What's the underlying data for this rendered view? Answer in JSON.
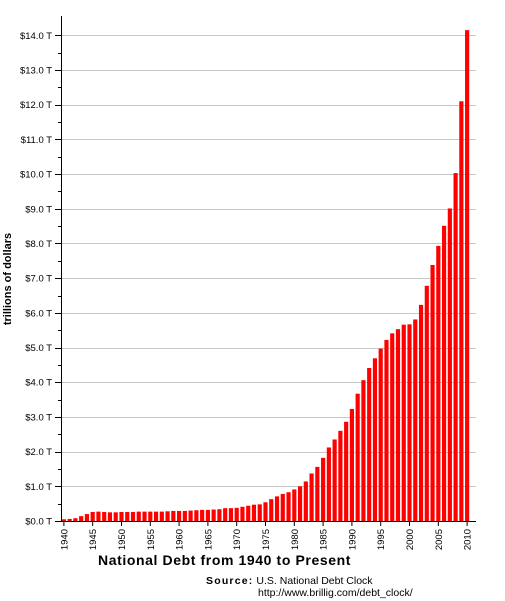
{
  "chart_data": {
    "type": "bar",
    "title": "National Debt from 1940 to Present",
    "ylabel": "trillions of dollars",
    "xlabel": "",
    "ylim": [
      0,
      14.5
    ],
    "grid": true,
    "bar_color": "#ff0000",
    "yticks": [
      0,
      1,
      2,
      3,
      4,
      5,
      6,
      7,
      8,
      9,
      10,
      11,
      12,
      13,
      14
    ],
    "ytick_labels": [
      "$0.0 T",
      "$1.0 T",
      "$2.0 T",
      "$3.0 T",
      "$4.0 T",
      "$5.0 T",
      "$6.0 T",
      "$7.0 T",
      "$8.0 T",
      "$9.0 T",
      "$10.0 T",
      "$11.0 T",
      "$12.0 T",
      "$13.0 T",
      "$14.0 T"
    ],
    "xtick_labels": [
      "1940",
      "1945",
      "1950",
      "1955",
      "1960",
      "1965",
      "1970",
      "1975",
      "1980",
      "1985",
      "1990",
      "1995",
      "2000",
      "2005",
      "2010"
    ],
    "categories": [
      "1940",
      "1941",
      "1942",
      "1943",
      "1944",
      "1945",
      "1946",
      "1947",
      "1948",
      "1949",
      "1950",
      "1951",
      "1952",
      "1953",
      "1954",
      "1955",
      "1956",
      "1957",
      "1958",
      "1959",
      "1960",
      "1961",
      "1962",
      "1963",
      "1964",
      "1965",
      "1966",
      "1967",
      "1968",
      "1969",
      "1970",
      "1971",
      "1972",
      "1973",
      "1974",
      "1975",
      "1976",
      "1977",
      "1978",
      "1979",
      "1980",
      "1981",
      "1982",
      "1983",
      "1984",
      "1985",
      "1986",
      "1987",
      "1988",
      "1989",
      "1990",
      "1991",
      "1992",
      "1993",
      "1994",
      "1995",
      "1996",
      "1997",
      "1998",
      "1999",
      "2000",
      "2001",
      "2002",
      "2003",
      "2004",
      "2005",
      "2006",
      "2007",
      "2008",
      "2009",
      "2010"
    ],
    "values": [
      0.05,
      0.06,
      0.08,
      0.14,
      0.2,
      0.26,
      0.27,
      0.26,
      0.25,
      0.25,
      0.26,
      0.26,
      0.26,
      0.27,
      0.27,
      0.27,
      0.27,
      0.27,
      0.28,
      0.29,
      0.29,
      0.29,
      0.3,
      0.31,
      0.32,
      0.32,
      0.33,
      0.34,
      0.37,
      0.37,
      0.38,
      0.41,
      0.44,
      0.47,
      0.48,
      0.54,
      0.63,
      0.71,
      0.78,
      0.83,
      0.91,
      1.0,
      1.14,
      1.37,
      1.56,
      1.82,
      2.12,
      2.35,
      2.6,
      2.86,
      3.23,
      3.67,
      4.06,
      4.41,
      4.69,
      4.97,
      5.22,
      5.41,
      5.53,
      5.66,
      5.67,
      5.81,
      6.23,
      6.78,
      7.38,
      7.93,
      8.51,
      9.01,
      10.03,
      12.1,
      14.15
    ]
  },
  "source": {
    "label": "Source:",
    "name": "U.S. National Debt Clock",
    "url": "http://www.brillig.com/debt_clock/"
  }
}
